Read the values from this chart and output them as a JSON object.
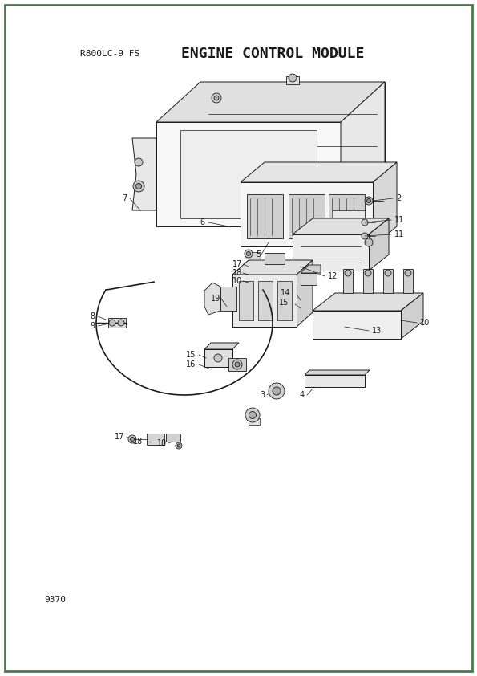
{
  "title": "ENGINE CONTROL MODULE",
  "subtitle": "R800LC-9 FS",
  "page_number": "9370",
  "border_color": "#4a7a4a",
  "background_color": "#ffffff",
  "text_color": "#1a1a1a",
  "line_color": "#1a1a1a",
  "title_fontsize": 13,
  "subtitle_fontsize": 8,
  "page_num_fontsize": 8
}
